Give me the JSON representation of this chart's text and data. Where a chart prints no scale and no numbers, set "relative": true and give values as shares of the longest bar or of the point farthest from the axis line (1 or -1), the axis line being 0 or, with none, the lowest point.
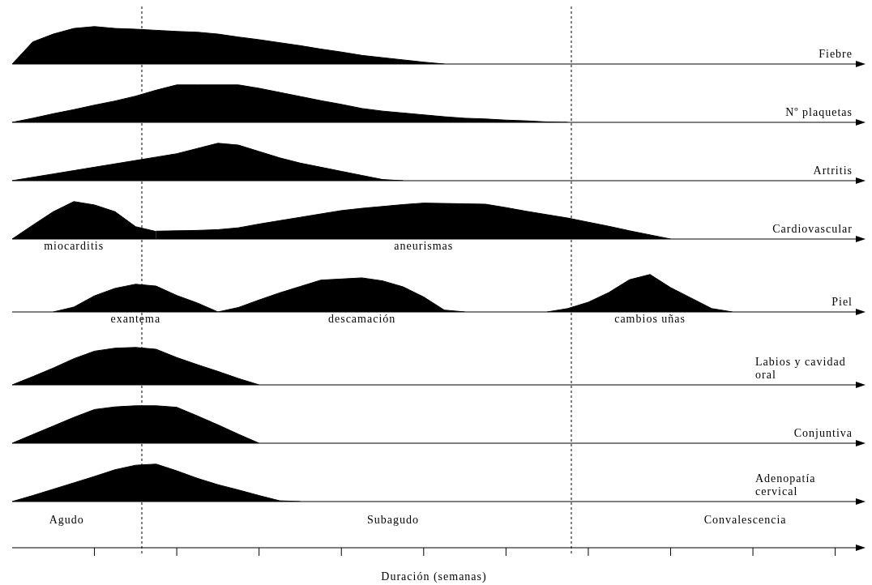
{
  "chart_data": [
    {
      "type": "area",
      "relative": true,
      "title": "Fiebre",
      "categories": [
        null,
        null,
        null,
        null,
        null,
        null,
        null,
        null,
        null,
        null,
        null,
        null,
        null,
        null,
        null,
        null,
        null,
        null,
        null,
        null,
        null,
        null,
        null,
        null,
        null,
        null,
        null,
        null,
        null,
        null,
        null,
        null,
        null,
        null,
        null,
        null,
        null,
        null,
        null,
        null,
        null,
        null
      ],
      "series": [
        {
          "color": "#000000",
          "values": [
            0,
            0.59,
            0.8,
            0.95,
            1,
            0.95,
            0.93,
            0.9,
            0.87,
            0.85,
            0.8,
            0.72,
            0.65,
            0.57,
            0.49,
            0.4,
            0.32,
            0.23,
            0.17,
            0.11,
            0.05,
            0,
            null,
            null,
            null,
            null,
            null,
            null,
            null,
            null,
            null,
            null,
            null,
            null,
            null,
            null,
            null,
            null,
            null,
            null,
            null,
            null
          ]
        }
      ]
    },
    {
      "type": "area",
      "relative": true,
      "title": "Nº plaquetas",
      "categories": [
        null,
        null,
        null,
        null,
        null,
        null,
        null,
        null,
        null,
        null,
        null,
        null,
        null,
        null,
        null,
        null,
        null,
        null,
        null,
        null,
        null,
        null,
        null,
        null,
        null,
        null,
        null,
        null,
        null,
        null,
        null,
        null,
        null,
        null,
        null,
        null,
        null,
        null,
        null,
        null,
        null,
        null
      ],
      "series": [
        {
          "color": "#000000",
          "values": [
            0,
            0.11,
            0.23,
            0.34,
            0.46,
            0.57,
            0.7,
            0.86,
            1,
            1,
            1,
            1,
            0.91,
            0.8,
            0.69,
            0.58,
            0.48,
            0.37,
            0.3,
            0.25,
            0.2,
            0.15,
            0.11,
            0.09,
            0.06,
            0.04,
            0.01,
            0,
            null,
            null,
            null,
            null,
            null,
            null,
            null,
            null,
            null,
            null,
            null,
            null,
            null,
            null
          ]
        }
      ]
    },
    {
      "type": "area",
      "relative": true,
      "title": "Artritis",
      "categories": [
        null,
        null,
        null,
        null,
        null,
        null,
        null,
        null,
        null,
        null,
        null,
        null,
        null,
        null,
        null,
        null,
        null,
        null,
        null,
        null,
        null,
        null,
        null,
        null,
        null,
        null,
        null,
        null,
        null,
        null,
        null,
        null,
        null,
        null,
        null,
        null,
        null,
        null,
        null,
        null,
        null,
        null
      ],
      "series": [
        {
          "color": "#000000",
          "values": [
            0,
            0.09,
            0.18,
            0.27,
            0.36,
            0.45,
            0.54,
            0.63,
            0.72,
            0.86,
            1,
            0.95,
            0.78,
            0.61,
            0.47,
            0.36,
            0.25,
            0.14,
            0.03,
            0,
            null,
            null,
            null,
            null,
            null,
            null,
            null,
            null,
            null,
            null,
            null,
            null,
            null,
            null,
            null,
            null,
            null,
            null,
            null,
            null,
            null,
            null
          ]
        }
      ]
    },
    {
      "type": "area",
      "relative": true,
      "title": "Cardiovascular",
      "categories": [
        null,
        null,
        null,
        null,
        null,
        null,
        null,
        null,
        null,
        null,
        null,
        null,
        null,
        null,
        null,
        null,
        null,
        null,
        null,
        null,
        null,
        null,
        null,
        null,
        null,
        null,
        null,
        null,
        null,
        null,
        null,
        null,
        null,
        null,
        null,
        null,
        null,
        null,
        null,
        null,
        null,
        null
      ],
      "series": [
        {
          "name": "miocarditis",
          "color": "#000000",
          "values": [
            0,
            0.37,
            0.73,
            1,
            0.91,
            0.73,
            0.33,
            0.2,
            null,
            null,
            null,
            null,
            null,
            null,
            null,
            null,
            null,
            null,
            null,
            null,
            null,
            null,
            null,
            null,
            null,
            null,
            null,
            null,
            null,
            null,
            null,
            null,
            null,
            null,
            null,
            null,
            null,
            null,
            null,
            null,
            null,
            null
          ]
        },
        {
          "name": "aneurismas",
          "color": "#000000",
          "values": [
            null,
            null,
            null,
            null,
            null,
            null,
            null,
            0.21,
            0.22,
            0.23,
            0.25,
            0.3,
            0.4,
            0.49,
            0.58,
            0.67,
            0.76,
            0.82,
            0.87,
            0.92,
            0.96,
            0.95,
            0.94,
            0.93,
            0.84,
            0.74,
            0.65,
            0.56,
            0.45,
            0.34,
            0.22,
            0.11,
            0,
            null,
            null,
            null,
            null,
            null,
            null,
            null,
            null,
            null
          ]
        }
      ]
    },
    {
      "type": "area",
      "relative": true,
      "title": "Piel",
      "categories": [
        null,
        null,
        null,
        null,
        null,
        null,
        null,
        null,
        null,
        null,
        null,
        null,
        null,
        null,
        null,
        null,
        null,
        null,
        null,
        null,
        null,
        null,
        null,
        null,
        null,
        null,
        null,
        null,
        null,
        null,
        null,
        null,
        null,
        null,
        null,
        null,
        null,
        null,
        null,
        null,
        null,
        null
      ],
      "series": [
        {
          "name": "exantema",
          "color": "#000000",
          "values": [
            null,
            null,
            0,
            0.13,
            0.43,
            0.63,
            0.74,
            0.69,
            0.44,
            0.24,
            0,
            null,
            null,
            null,
            null,
            null,
            null,
            null,
            null,
            null,
            null,
            null,
            null,
            null,
            null,
            null,
            null,
            null,
            null,
            null,
            null,
            null,
            null,
            null,
            null,
            null,
            null,
            null,
            null,
            null,
            null,
            null
          ]
        },
        {
          "name": "descamación",
          "color": "#000000",
          "values": [
            null,
            null,
            null,
            null,
            null,
            null,
            null,
            null,
            null,
            null,
            0,
            0.12,
            0.32,
            0.51,
            0.68,
            0.85,
            0.88,
            0.91,
            0.83,
            0.67,
            0.4,
            0.05,
            0,
            null,
            null,
            null,
            null,
            null,
            null,
            null,
            null,
            null,
            null,
            null,
            null,
            null,
            null,
            null,
            null,
            null,
            null,
            null
          ]
        },
        {
          "name": "cambios uñas",
          "color": "#000000",
          "values": [
            null,
            null,
            null,
            null,
            null,
            null,
            null,
            null,
            null,
            null,
            null,
            null,
            null,
            null,
            null,
            null,
            null,
            null,
            null,
            null,
            null,
            null,
            null,
            null,
            null,
            null,
            0,
            0.09,
            0.26,
            0.52,
            0.86,
            1,
            0.65,
            0.37,
            0.09,
            0,
            null,
            null,
            null,
            null,
            null,
            null
          ]
        }
      ]
    },
    {
      "type": "area",
      "relative": true,
      "title": "Labios y cavidad oral",
      "categories": [
        null,
        null,
        null,
        null,
        null,
        null,
        null,
        null,
        null,
        null,
        null,
        null,
        null,
        null,
        null,
        null,
        null,
        null,
        null,
        null,
        null,
        null,
        null,
        null,
        null,
        null,
        null,
        null,
        null,
        null,
        null,
        null,
        null,
        null,
        null,
        null,
        null,
        null,
        null,
        null,
        null,
        null
      ],
      "series": [
        {
          "color": "#000000",
          "values": [
            0,
            0.22,
            0.45,
            0.7,
            0.9,
            0.98,
            1,
            0.95,
            0.73,
            0.54,
            0.36,
            0.17,
            0,
            null,
            null,
            null,
            null,
            null,
            null,
            null,
            null,
            null,
            null,
            null,
            null,
            null,
            null,
            null,
            null,
            null,
            null,
            null,
            null,
            null,
            null,
            null,
            null,
            null,
            null,
            null,
            null,
            null
          ]
        }
      ]
    },
    {
      "type": "area",
      "relative": true,
      "title": "Conjuntiva",
      "categories": [
        null,
        null,
        null,
        null,
        null,
        null,
        null,
        null,
        null,
        null,
        null,
        null,
        null,
        null,
        null,
        null,
        null,
        null,
        null,
        null,
        null,
        null,
        null,
        null,
        null,
        null,
        null,
        null,
        null,
        null,
        null,
        null,
        null,
        null,
        null,
        null,
        null,
        null,
        null,
        null,
        null,
        null
      ],
      "series": [
        {
          "color": "#000000",
          "values": [
            0,
            0.23,
            0.46,
            0.69,
            0.9,
            0.97,
            1,
            1,
            0.96,
            0.73,
            0.49,
            0.24,
            0,
            null,
            null,
            null,
            null,
            null,
            null,
            null,
            null,
            null,
            null,
            null,
            null,
            null,
            null,
            null,
            null,
            null,
            null,
            null,
            null,
            null,
            null,
            null,
            null,
            null,
            null,
            null,
            null,
            null
          ]
        }
      ]
    },
    {
      "type": "area",
      "relative": true,
      "title": "Adenopatía cervical",
      "xlabel": "Duración (semanas)",
      "annotations": [
        "Agudo",
        "Subagudo",
        "Convalescencia"
      ],
      "categories": [
        null,
        null,
        null,
        null,
        null,
        null,
        null,
        null,
        null,
        null,
        null,
        null,
        null,
        null,
        null,
        null,
        null,
        null,
        null,
        null,
        null,
        null,
        null,
        null,
        null,
        null,
        null,
        null,
        null,
        null,
        null,
        null,
        null,
        null,
        null,
        null,
        null,
        null,
        null,
        null,
        null,
        null
      ],
      "series": [
        {
          "color": "#000000",
          "values": [
            0,
            0.16,
            0.33,
            0.5,
            0.67,
            0.85,
            0.97,
            1,
            0.82,
            0.62,
            0.45,
            0.31,
            0.16,
            0.02,
            0,
            null,
            null,
            null,
            null,
            null,
            null,
            null,
            null,
            null,
            null,
            null,
            null,
            null,
            null,
            null,
            null,
            null,
            null,
            null,
            null,
            null,
            null,
            null,
            null,
            null,
            null,
            null
          ]
        }
      ]
    }
  ]
}
